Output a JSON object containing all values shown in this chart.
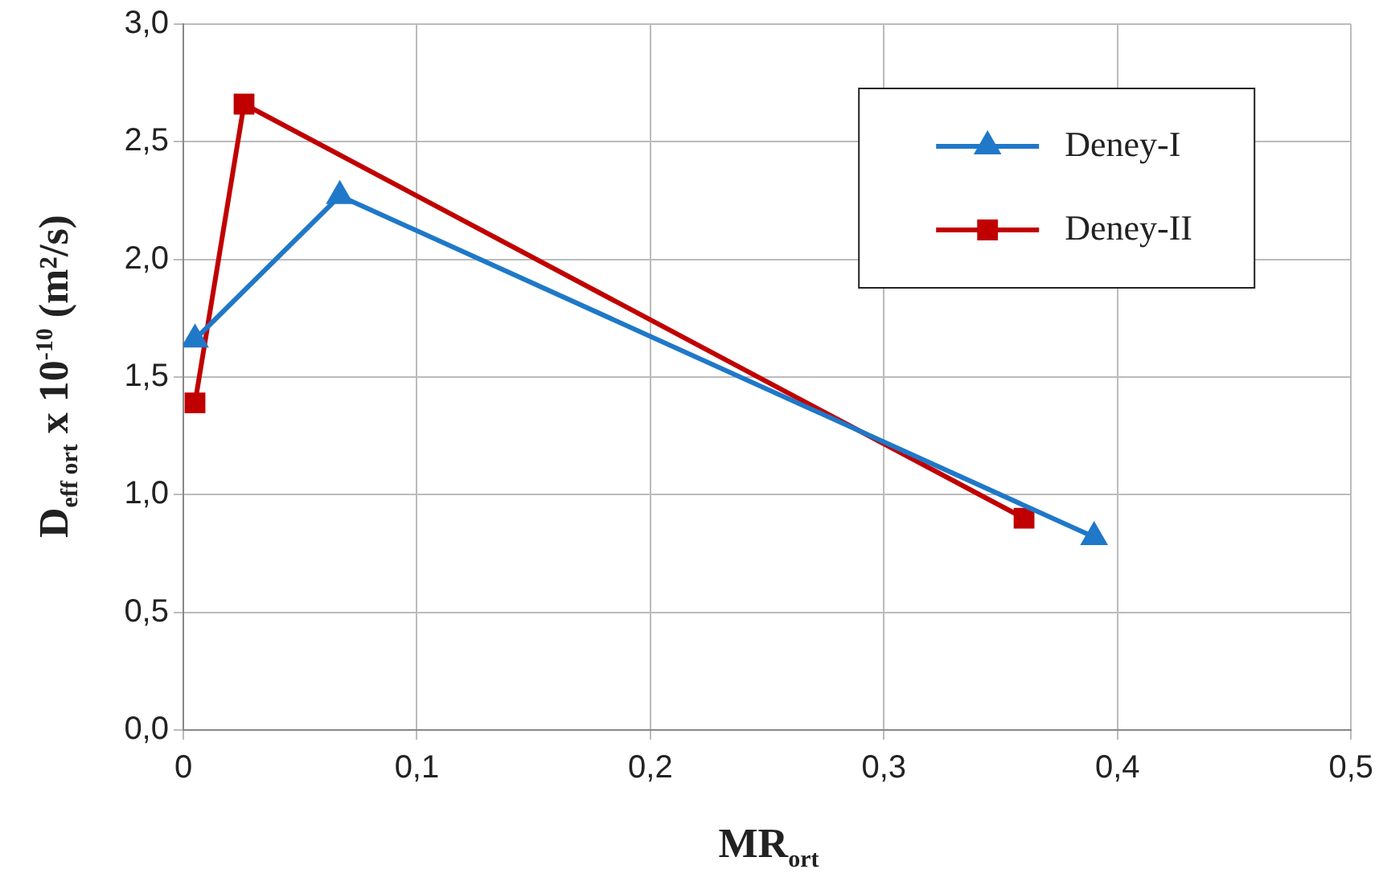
{
  "chart_data": {
    "type": "line",
    "xlabel": "MR$_{ort}$",
    "ylabel": "D$_{eff ort}$ x 10$^{-10}$ (m²/s)",
    "series": [
      {
        "name": "Deney-I",
        "color": "#1f78c8",
        "marker": "triangle",
        "x": [
          0.005,
          0.067,
          0.39
        ],
        "values": [
          1.66,
          2.27,
          0.82
        ]
      },
      {
        "name": "Deney-II",
        "color": "#c00000",
        "marker": "square",
        "x": [
          0.005,
          0.026,
          0.36
        ],
        "values": [
          1.39,
          2.66,
          0.9
        ]
      }
    ],
    "xlim": [
      0,
      0.5
    ],
    "xticks": [
      {
        "value": 0,
        "label": "0"
      },
      {
        "value": 0.1,
        "label": "0,1"
      },
      {
        "value": 0.2,
        "label": "0,2"
      },
      {
        "value": 0.3,
        "label": "0,3"
      },
      {
        "value": 0.4,
        "label": "0,4"
      },
      {
        "value": 0.5,
        "label": "0,5"
      }
    ],
    "ylim": [
      0,
      3
    ],
    "yticks": [
      {
        "value": 0,
        "label": "0,0"
      },
      {
        "value": 0.5,
        "label": "0,5"
      },
      {
        "value": 1,
        "label": "1,0"
      },
      {
        "value": 1.5,
        "label": "1,5"
      },
      {
        "value": 2,
        "label": "2,0"
      },
      {
        "value": 2.5,
        "label": "2,5"
      },
      {
        "value": 3,
        "label": "3,0"
      }
    ],
    "grid": true,
    "legend": "top right",
    "line_style": "solid"
  }
}
